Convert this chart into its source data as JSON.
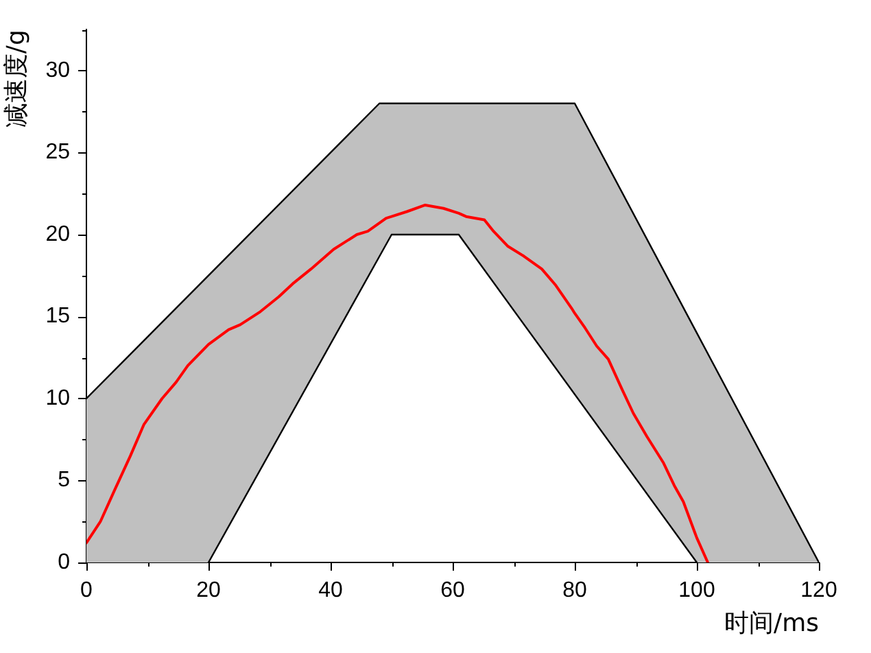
{
  "chart_data": {
    "type": "line",
    "xlabel": "时间/ms",
    "ylabel": "减速度/g",
    "xlim": [
      0,
      120
    ],
    "xticks": [
      0,
      {
        "value": 10,
        "label": null
      },
      20,
      {
        "value": 30,
        "label": null
      },
      40,
      {
        "value": 50,
        "label": null
      },
      60,
      {
        "value": 70,
        "label": null
      },
      80,
      {
        "value": 90,
        "label": null
      },
      100,
      {
        "value": 110,
        "label": null
      },
      120
    ],
    "ylim": [
      0,
      32.5
    ],
    "yticks": [
      0,
      {
        "value": 2.5,
        "label": null
      },
      5,
      {
        "value": 7.5,
        "label": null
      },
      10,
      {
        "value": 12.5,
        "label": null
      },
      15,
      {
        "value": 17.5,
        "label": null
      },
      20,
      {
        "value": 22.5,
        "label": null
      },
      25,
      {
        "value": 27.5,
        "label": null
      },
      30,
      {
        "value": 32.5,
        "label": null
      }
    ],
    "series": [
      {
        "type": "line",
        "color": "#ff0000",
        "x": [
          0,
          2.3,
          4.6,
          7.2,
          9.4,
          12.4,
          14.7,
          16.6,
          20,
          23.3,
          25.2,
          28.5,
          31.5,
          33.8,
          36.8,
          40.5,
          44.3,
          46.1,
          48,
          49.1,
          50,
          52.5,
          55.5,
          58.5,
          61,
          62.2,
          65.2,
          66.7,
          69.0,
          71.6,
          74.6,
          76.9,
          79.5,
          80,
          81.7,
          83.6,
          85.5,
          87.7,
          89.6,
          91.8,
          94.5,
          96.3,
          97.8,
          99.7,
          100,
          101.8,
          120
        ],
        "values": [
          1.2,
          2.5,
          4.4,
          6.5,
          8.4,
          10.0,
          11.0,
          12.0,
          13.3,
          14.2,
          14.5,
          15.3,
          16.2,
          17.0,
          17.9,
          19.1,
          20.0,
          20.2,
          20.7,
          21.0,
          21.1,
          21.4,
          21.8,
          21.6,
          21.3,
          21.1,
          20.9,
          20.2,
          19.3,
          18.7,
          17.9,
          16.9,
          15.5,
          15.2,
          14.3,
          13.2,
          12.4,
          10.6,
          9.1,
          7.7,
          6.1,
          4.7,
          3.7,
          1.8,
          1.5,
          0,
          null
        ],
        "lower": [
          0,
          0,
          0,
          0,
          0,
          0,
          0,
          0,
          0,
          2.2,
          3.5,
          5.7,
          7.7,
          9.2,
          11.2,
          13.7,
          16.2,
          17.4,
          18.7,
          19.4,
          20,
          20,
          20,
          20,
          20,
          19.4,
          17.8,
          17.1,
          15.9,
          14.6,
          13.0,
          11.8,
          10.5,
          10.3,
          9.4,
          8.4,
          7.4,
          6.3,
          5.3,
          4.2,
          2.8,
          1.9,
          1.1,
          0.2,
          0,
          0,
          0
        ],
        "upper": [
          10.0,
          10.9,
          11.7,
          12.7,
          13.5,
          14.7,
          15.5,
          16.2,
          17.5,
          18.7,
          19.5,
          20.7,
          21.8,
          22.7,
          23.8,
          25.2,
          26.6,
          27.3,
          28,
          28,
          28,
          28,
          28,
          28,
          28,
          28,
          28,
          28,
          28,
          28,
          28,
          28,
          28,
          28,
          26.8,
          25.5,
          24.2,
          22.6,
          21.3,
          19.7,
          17.9,
          16.6,
          15.5,
          14.2,
          14,
          12.7,
          0
        ]
      },
      {
        "type": "line",
        "color": "#000000",
        "x": [
          0,
          48,
          80,
          120
        ],
        "values": [
          10,
          28,
          28,
          0
        ]
      },
      {
        "type": "line",
        "color": "#000000",
        "x": [
          20,
          50,
          61,
          100
        ],
        "values": [
          0,
          20,
          20,
          0
        ]
      }
    ]
  }
}
